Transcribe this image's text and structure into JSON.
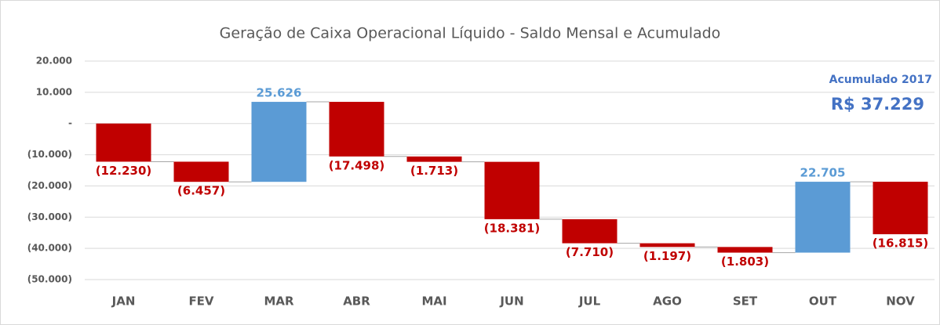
{
  "chart_data": {
    "type": "waterfall",
    "title": "Geração de Caixa Operacional Líquido - Saldo Mensal e Acumulado",
    "categories": [
      "JAN",
      "FEV",
      "MAR",
      "ABR",
      "MAI",
      "JUN",
      "JUL",
      "AGO",
      "SET",
      "OUT",
      "NOV"
    ],
    "values": [
      -12230,
      -6457,
      25626,
      -17498,
      -1713,
      -18381,
      -7710,
      -1197,
      -1803,
      22705,
      -16815
    ],
    "value_labels": [
      "(12.230)",
      "(6.457)",
      "25.626",
      "(17.498)",
      "(1.713)",
      "(18.381)",
      "(7.710)",
      "(1.197)",
      "(1.803)",
      "22.705",
      "(16.815)"
    ],
    "positive_color": "#5b9bd5",
    "negative_color": "#c00000",
    "ylim": [
      -50000,
      20000
    ],
    "yticks": [
      {
        "value": -50000,
        "label": "(50.000)"
      },
      {
        "value": -40000,
        "label": "(40.000)"
      },
      {
        "value": -30000,
        "label": "(30.000)"
      },
      {
        "value": -20000,
        "label": "(20.000)"
      },
      {
        "value": -10000,
        "label": "(10.000)"
      },
      {
        "value": 0,
        "label": "-"
      },
      {
        "value": 10000,
        "label": "10.000"
      },
      {
        "value": 20000,
        "label": "20.000"
      }
    ],
    "grid": true,
    "annotations": [
      "Acumulado 2017",
      "R$ 37.229"
    ]
  }
}
